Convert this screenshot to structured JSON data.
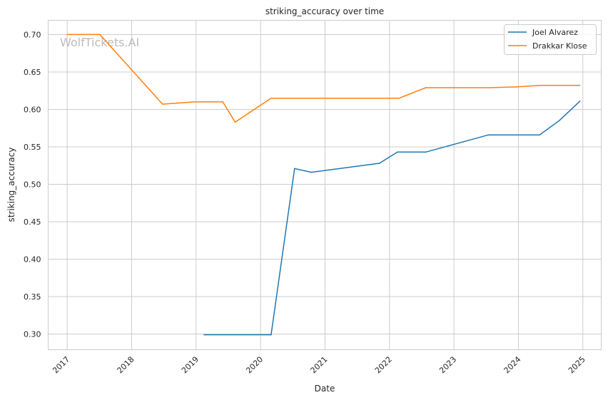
{
  "watermark": "WolfTickets.AI",
  "chart_data": {
    "type": "line",
    "title": "striking_accuracy over time",
    "xlabel": "Date",
    "ylabel": "striking_accuracy",
    "xlim": [
      "2016-09-15",
      "2025-04-15"
    ],
    "ylim": [
      0.279,
      0.719
    ],
    "grid": true,
    "legend": "top-right",
    "x_ticks": [
      "2017",
      "2018",
      "2019",
      "2020",
      "2021",
      "2022",
      "2023",
      "2024",
      "2025"
    ],
    "y_ticks": [
      "0.30",
      "0.35",
      "0.40",
      "0.45",
      "0.50",
      "0.55",
      "0.60",
      "0.65",
      "0.70"
    ],
    "series": [
      {
        "name": "Joel Alvarez",
        "color": "#1f77b4",
        "x": [
          "2019-02-15",
          "2020-03-01",
          "2020-07-12",
          "2020-10-15",
          "2021-11-05",
          "2022-02-15",
          "2022-07-25",
          "2023-07-15",
          "2024-04-30",
          "2024-08-20",
          "2024-12-15"
        ],
        "y": [
          0.299,
          0.299,
          0.521,
          0.516,
          0.528,
          0.543,
          0.543,
          0.566,
          0.566,
          0.585,
          0.611
        ]
      },
      {
        "name": "Drakkar Klose",
        "color": "#ff7f0e",
        "x": [
          "2017-01-01",
          "2017-07-05",
          "2018-06-25",
          "2018-12-20",
          "2019-06-01",
          "2019-08-10",
          "2020-03-01",
          "2022-02-25",
          "2022-07-25",
          "2023-07-20",
          "2023-12-20",
          "2024-04-30",
          "2024-12-15"
        ],
        "y": [
          0.7,
          0.7,
          0.607,
          0.61,
          0.61,
          0.583,
          0.615,
          0.615,
          0.629,
          0.629,
          0.63,
          0.632,
          0.632
        ]
      }
    ]
  }
}
